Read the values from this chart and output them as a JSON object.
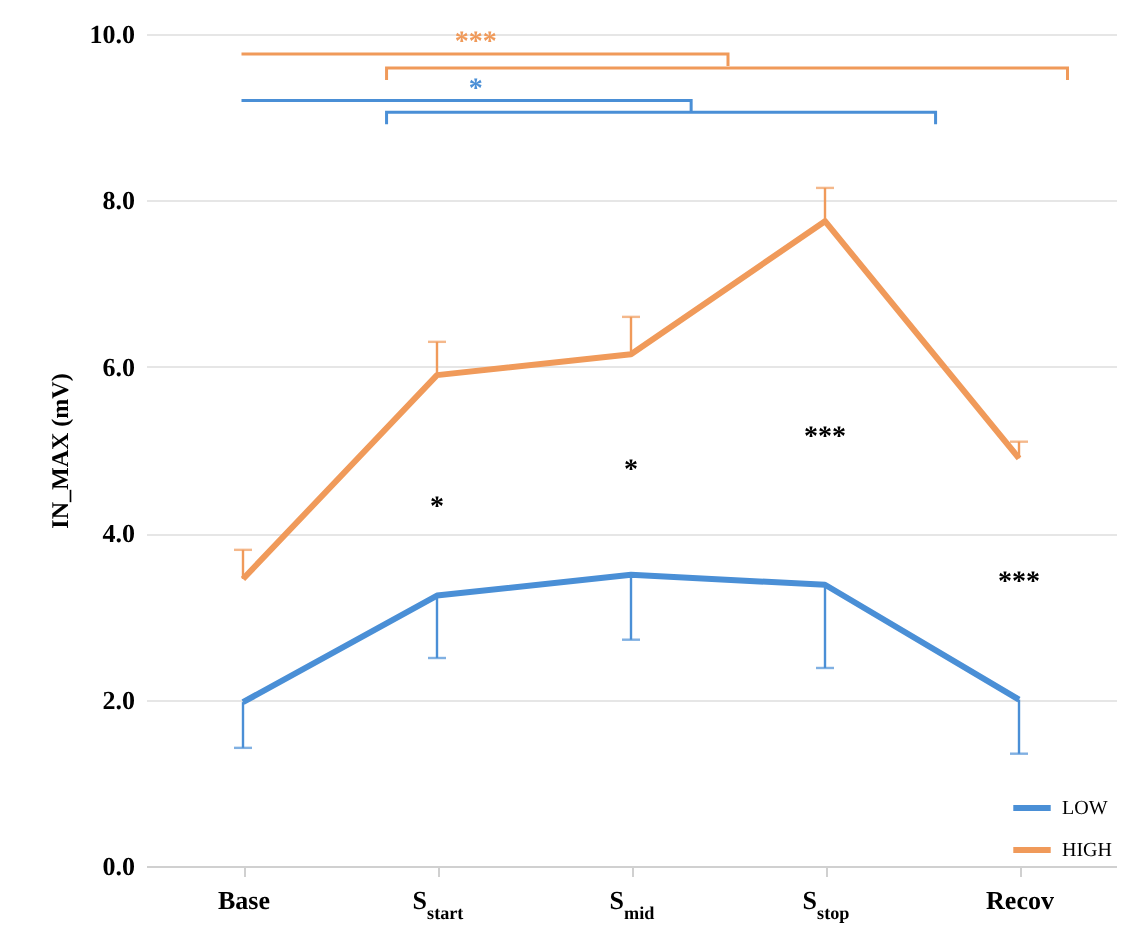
{
  "chart_data": {
    "type": "line",
    "ylabel": "IN_MAX (mV)",
    "categories": [
      "Base",
      "S$_{start}$",
      "S$_{mid}$",
      "S$_{stop}$",
      "Recov"
    ],
    "series": [
      {
        "name": "LOW",
        "color": "#4a8fd6",
        "values": [
          1.97,
          3.25,
          3.5,
          3.38,
          2.0
        ],
        "errors": [
          [
            1.42,
            1.97
          ],
          [
            2.5,
            3.25
          ],
          [
            2.72,
            3.5
          ],
          [
            2.38,
            3.38
          ],
          [
            1.35,
            2.0
          ]
        ]
      },
      {
        "name": "HIGH",
        "color": "#f09a5a",
        "values": [
          3.45,
          5.9,
          6.15,
          7.75,
          4.9
        ],
        "errors": [
          [
            3.45,
            3.8
          ],
          [
            5.9,
            6.3
          ],
          [
            6.15,
            6.6
          ],
          [
            7.75,
            8.15
          ],
          [
            4.9,
            5.1
          ]
        ]
      }
    ],
    "ylim": [
      0,
      10
    ],
    "yticks": [
      {
        "value": 0,
        "label": "0.0"
      },
      {
        "value": 2,
        "label": "2.0"
      },
      {
        "value": 4,
        "label": "4.0"
      },
      {
        "value": 6,
        "label": "6.0"
      },
      {
        "value": 8,
        "label": "8.0"
      },
      {
        "value": 10,
        "label": "10.0"
      }
    ],
    "grid": "y",
    "legend": "bottom right",
    "annotations": [
      "*",
      "*",
      "***",
      "***",
      "*",
      "***"
    ]
  }
}
